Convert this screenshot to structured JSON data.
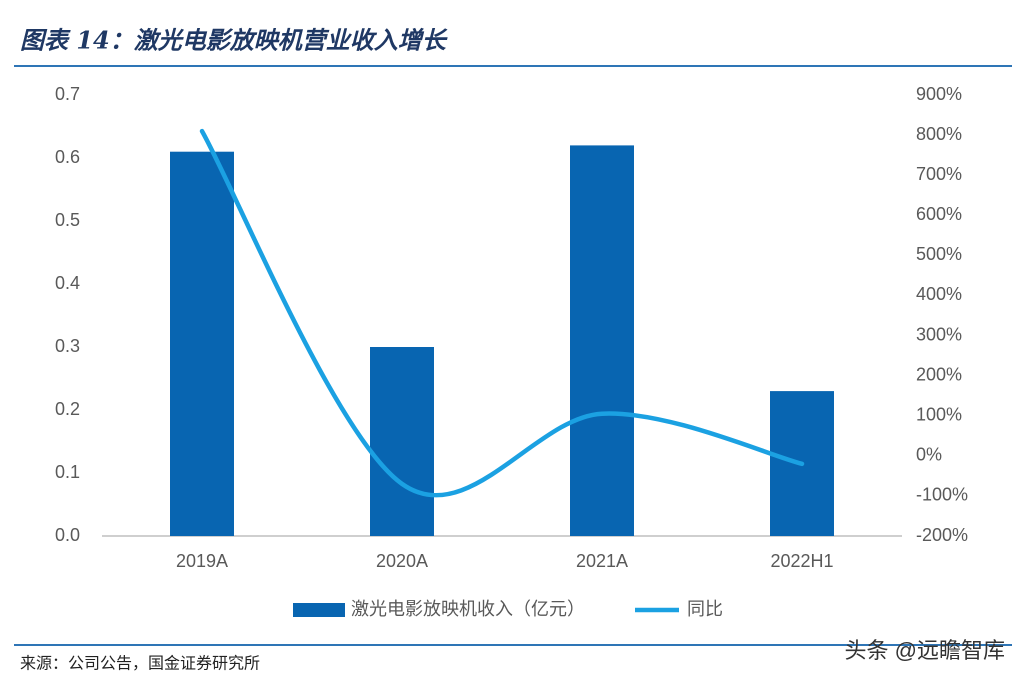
{
  "chart_data": {
    "type": "bar",
    "title": "图表 14：激光电影放映机营业收入增长",
    "categories": [
      "2019A",
      "2020A",
      "2021A",
      "2022H1"
    ],
    "series": [
      {
        "name": "激光电影放映机收入（亿元）",
        "type": "bar",
        "color": "#0865b1",
        "values": [
          0.61,
          0.3,
          0.62,
          0.23
        ]
      },
      {
        "name": "同比",
        "type": "line",
        "axis": "y2",
        "color": "#1ba1e2",
        "values": [
          810,
          -70,
          105,
          -20
        ]
      }
    ],
    "ylim": [
      0,
      0.7
    ],
    "yticks": [
      {
        "value": 0,
        "label": "0.0"
      },
      0.1,
      0.2,
      0.3,
      0.4,
      0.5,
      0.6,
      0.7
    ],
    "y2lim": [
      -200,
      900
    ],
    "y2ticks": [
      {
        "value": -200,
        "label": "-200%"
      },
      {
        "value": -100,
        "label": "-100%"
      },
      {
        "value": 0,
        "label": "0%"
      },
      {
        "value": 100,
        "label": "100%"
      },
      {
        "value": 200,
        "label": "200%"
      },
      {
        "value": 300,
        "label": "300%"
      },
      {
        "value": 400,
        "label": "400%"
      },
      {
        "value": 500,
        "label": "500%"
      },
      {
        "value": 600,
        "label": "600%"
      },
      {
        "value": 700,
        "label": "700%"
      },
      {
        "value": 800,
        "label": "800%"
      },
      {
        "value": 900,
        "label": "900%"
      }
    ],
    "legend": "bottom",
    "source": "来源：公司公告，国金证券研究所",
    "watermark": "头条 @远瞻智库"
  }
}
